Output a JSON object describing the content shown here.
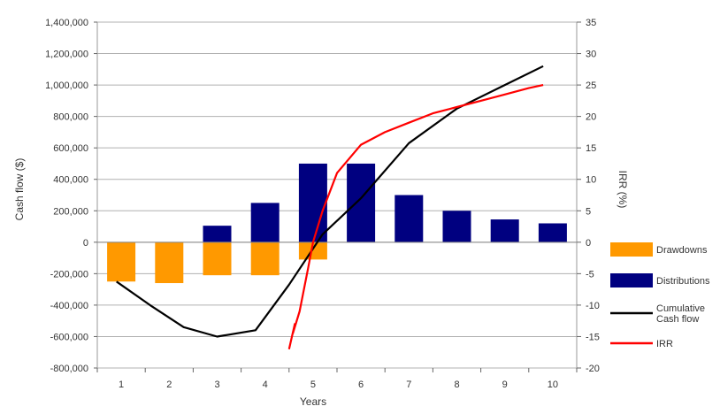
{
  "chart_data": {
    "type": "bar",
    "xlabel": "Years",
    "ylabel_left": "Cash flow ($)",
    "ylabel_right": "IRR (%)",
    "categories": [
      "1",
      "2",
      "3",
      "4",
      "5",
      "6",
      "7",
      "8",
      "9",
      "10"
    ],
    "ylim_left": [
      -800000,
      1400000
    ],
    "yticks_left": [
      "1,400,000",
      "1,200,000",
      "1,000,000",
      "800,000",
      "600,000",
      "400,000",
      "200,000",
      "0",
      "-200,000",
      "-400,000",
      "-600,000",
      "-800,000"
    ],
    "ylim_right": [
      -20,
      35
    ],
    "yticks_right": [
      "35",
      "30",
      "25",
      "20",
      "15",
      "10",
      "5",
      "0",
      "-5",
      "-10",
      "-15",
      "-20"
    ],
    "grid": "horizontal",
    "legend_position": "right",
    "series": [
      {
        "name": "Drawdowns",
        "kind": "bar",
        "color": "#ff9900",
        "values": [
          -250000,
          -260000,
          -210000,
          -210000,
          -110000,
          null,
          null,
          null,
          null,
          null
        ]
      },
      {
        "name": "Distributions",
        "kind": "bar",
        "color": "#000080",
        "values": [
          null,
          null,
          105000,
          250000,
          500000,
          500000,
          300000,
          200000,
          145000,
          120000
        ]
      },
      {
        "name": "Cumulative Cash flow",
        "kind": "line",
        "axis": "left",
        "color": "#000000",
        "x": [
          0.9,
          1.6,
          2.3,
          3,
          3.8,
          4.5,
          5.2,
          6,
          7,
          8,
          9,
          9.8
        ],
        "values": [
          -250000,
          -400000,
          -540000,
          -600000,
          -560000,
          -270000,
          50000,
          280000,
          630000,
          850000,
          1000000,
          1120000
        ]
      },
      {
        "name": "IRR",
        "kind": "line",
        "axis": "right",
        "color": "#ff0000",
        "x": [
          4.5,
          4.62,
          4.58,
          4.72,
          4.9,
          5.0,
          5.2,
          5.5,
          6,
          6.5,
          7,
          7.5,
          8,
          8.5,
          9,
          9.5,
          9.8
        ],
        "values": [
          -17,
          -13,
          -14.5,
          -11,
          -4,
          0,
          5,
          11,
          15.5,
          17.5,
          19,
          20.5,
          21.5,
          22.5,
          23.5,
          24.5,
          25
        ]
      }
    ]
  }
}
